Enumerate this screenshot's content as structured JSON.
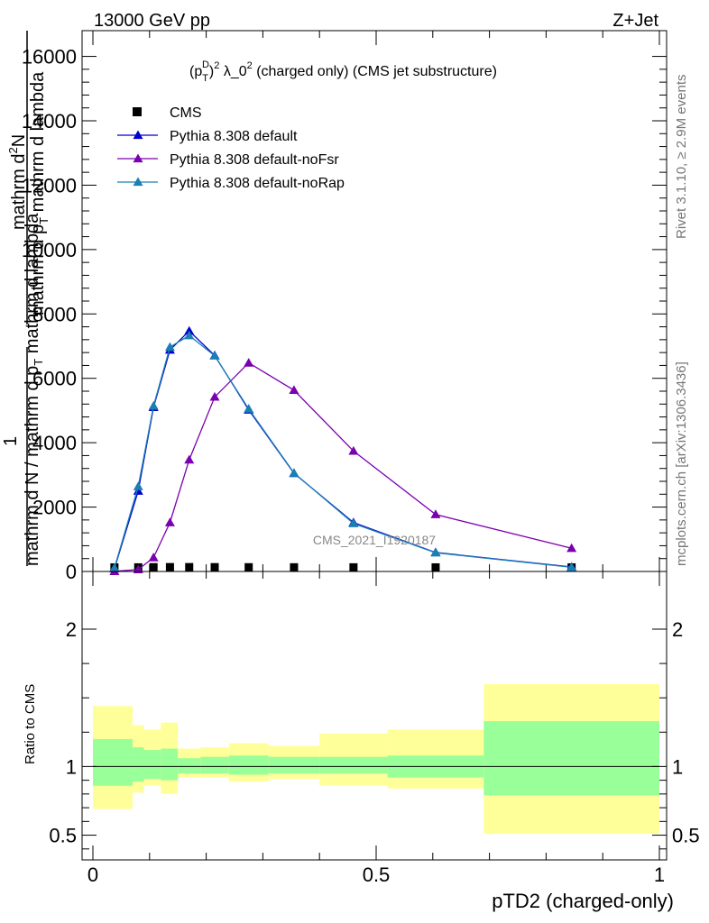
{
  "header": {
    "energy_label": "13000 GeV pp",
    "process_label": "Z+Jet"
  },
  "side_labels": {
    "rivet": "Rivet 3.1.10, ≥ 2.9M events",
    "mcplots": "mcplots.cern.ch [arXiv:1306.3436]"
  },
  "chart_data": [
    {
      "type": "line",
      "title": "(p_T^D)^2 λ_0^2 (charged only) (CMS jet substructure)",
      "title_parts": {
        "prefix": "(p",
        "sub": "T",
        "sup": "D",
        "middle": ")",
        "sup2": "2",
        "rest": " λ_0",
        "sup3": "2",
        "suffix": " (charged only) (CMS jet substructure)"
      },
      "watermark": "CMS_2021_I1920187",
      "ylabel_lines": [
        "mathrm d²N",
        "mathrm d p_T mathrm d lambda",
        "1",
        "mathrm d N / mathrm d p_T mathrm d lambda"
      ],
      "ylabel_parts": {
        "upper_num": "mathrm d",
        "upper_num_sup": "2",
        "upper_num_end": "N",
        "upper_den_a": "mathrm d p",
        "upper_den_sub": "T",
        "upper_den_b": " mathrm d lambda",
        "one": "1",
        "lower_a": "mathrm d N / mathrm d p",
        "lower_sub": "T",
        "lower_b": " mathrm d lambda"
      },
      "xlim": [
        0,
        1
      ],
      "ylim": [
        0,
        16800
      ],
      "y_ticks": [
        0,
        2000,
        4000,
        6000,
        8000,
        10000,
        12000,
        14000,
        16000
      ],
      "y_tick_labels": [
        "0",
        "2000",
        "4000",
        "6000",
        "8000",
        "10000",
        "12000",
        "14000",
        "16000"
      ],
      "legend_position": "top-left",
      "series": [
        {
          "name": "CMS",
          "marker": "square",
          "color": "#000000",
          "x": [
            0.038,
            0.08,
            0.107,
            0.136,
            0.17,
            0.215,
            0.275,
            0.355,
            0.46,
            0.605,
            0.845
          ],
          "y": [
            0,
            2,
            8,
            10,
            10,
            8,
            6,
            4,
            3,
            1,
            0.5
          ]
        },
        {
          "name": "Pythia 8.308 default",
          "marker": "triangle",
          "color": "#0000cc",
          "x": [
            0.038,
            0.08,
            0.107,
            0.136,
            0.17,
            0.215,
            0.275,
            0.355,
            0.46,
            0.605,
            0.845
          ],
          "y": [
            90,
            2500,
            5100,
            6880,
            7470,
            6710,
            5020,
            3050,
            1520,
            590,
            140
          ]
        },
        {
          "name": "Pythia 8.308 default-noFsr",
          "marker": "triangle",
          "color": "#7a00b0",
          "x": [
            0.038,
            0.08,
            0.107,
            0.136,
            0.17,
            0.215,
            0.275,
            0.355,
            0.46,
            0.605,
            0.845
          ],
          "y": [
            5,
            60,
            430,
            1520,
            3470,
            5420,
            6480,
            5630,
            3740,
            1770,
            720
          ]
        },
        {
          "name": "Pythia 8.308 default-noRap",
          "marker": "triangle",
          "color": "#1a7fb5",
          "x": [
            0.038,
            0.08,
            0.107,
            0.136,
            0.17,
            0.215,
            0.275,
            0.355,
            0.46,
            0.605,
            0.845
          ],
          "y": [
            110,
            2640,
            5140,
            6970,
            7330,
            6700,
            5050,
            3060,
            1490,
            580,
            130
          ]
        }
      ]
    },
    {
      "type": "area",
      "ylabel": "Ratio to CMS",
      "xlabel": "pTD2 (charged-only)",
      "xlim": [
        0,
        1
      ],
      "ylim": [
        0.32,
        2.42
      ],
      "x_ticks": [
        0,
        0.5,
        1
      ],
      "x_tick_labels": [
        "0",
        "0.5",
        "1"
      ],
      "y_ticks": [
        0.5,
        1,
        2
      ],
      "y_tick_labels": [
        "0.5",
        "1",
        "2"
      ],
      "reference_line": 1,
      "bands": {
        "edges": [
          0,
          0.07,
          0.09,
          0.12,
          0.15,
          0.19,
          0.24,
          0.31,
          0.4,
          0.52,
          0.69,
          1.0
        ],
        "stat_low": [
          0.86,
          0.89,
          0.91,
          0.9,
          0.95,
          0.95,
          0.94,
          0.95,
          0.95,
          0.92,
          0.79
        ],
        "stat_high": [
          1.2,
          1.14,
          1.12,
          1.13,
          1.06,
          1.07,
          1.08,
          1.07,
          1.07,
          1.08,
          1.33
        ],
        "total_low": [
          0.69,
          0.81,
          0.86,
          0.8,
          0.92,
          0.92,
          0.89,
          0.91,
          0.86,
          0.84,
          0.51
        ],
        "total_high": [
          1.44,
          1.3,
          1.27,
          1.32,
          1.13,
          1.14,
          1.17,
          1.15,
          1.24,
          1.27,
          1.6
        ],
        "stat_color": "#99ff99",
        "total_color": "#ffff99"
      }
    }
  ]
}
